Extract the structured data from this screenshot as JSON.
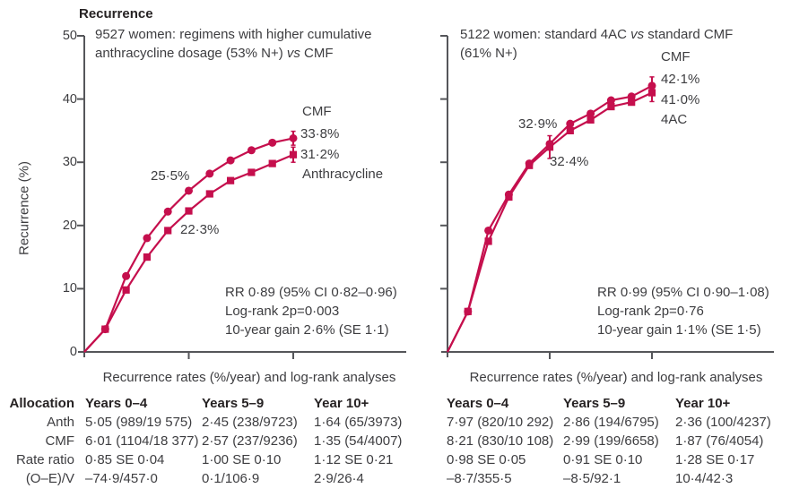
{
  "title": "Recurrence",
  "colors": {
    "series": "#c50f4d",
    "axis": "#55565a",
    "text": "#3d3d40",
    "strong": "#262223"
  },
  "axes": {
    "y_label": "Recurrence (%)",
    "y_tick_labels": [
      "0",
      "10",
      "20",
      "30",
      "40",
      "50"
    ],
    "y_max": 50,
    "x_tick_years": [
      5,
      10
    ]
  },
  "chart_data": [
    {
      "type": "line",
      "panel": "left",
      "header": {
        "line1": "9527 women: regimens with higher cumulative",
        "line2_pre": "anthracycline dosage (53% N+) ",
        "vs": "vs",
        "line2_post": " CMF"
      },
      "x_years": [
        0,
        1,
        2,
        3,
        4,
        5,
        6,
        7,
        8,
        9,
        10
      ],
      "xlabel": "",
      "ylabel": "Recurrence (%)",
      "ylim": [
        0,
        50
      ],
      "series": [
        {
          "name": "CMF",
          "marker": "circle",
          "values": [
            0,
            3.6,
            12.0,
            18.0,
            22.2,
            25.5,
            28.2,
            30.3,
            31.9,
            33.1,
            33.8
          ],
          "error_bars": [
            {
              "year": 10,
              "half": 1.1
            }
          ],
          "five_year_label": "25·5%",
          "end_label": "33·8%"
        },
        {
          "name": "Anthracycline",
          "marker": "square",
          "values": [
            0,
            3.6,
            9.8,
            15.0,
            19.2,
            22.3,
            25.0,
            27.1,
            28.4,
            29.8,
            31.2
          ],
          "error_bars": [
            {
              "year": 10,
              "half": 1.2
            }
          ],
          "five_year_label": "22·3%",
          "end_label": "31·2%"
        }
      ],
      "stats": [
        "RR 0·89 (95% CI 0·82–0·96)",
        "Log-rank 2p=0·003",
        "10-year gain 2·6% (SE 1·1)"
      ]
    },
    {
      "type": "line",
      "panel": "right",
      "header": {
        "line1_pre": "5122 women: standard 4AC ",
        "vs": "vs",
        "line1_post": " standard CMF",
        "line2": "(61% N+)"
      },
      "x_years": [
        0,
        1,
        2,
        3,
        4,
        5,
        6,
        7,
        8,
        9,
        10
      ],
      "xlabel": "",
      "ylabel": "Recurrence (%)",
      "ylim": [
        0,
        50
      ],
      "series": [
        {
          "name": "CMF",
          "marker": "circle",
          "values": [
            0,
            6.4,
            19.2,
            24.9,
            29.8,
            32.9,
            36.1,
            37.7,
            39.8,
            40.4,
            42.1
          ],
          "error_bars": [
            {
              "year": 10,
              "half": 1.4
            }
          ],
          "five_year_label": "32·9%",
          "end_label": "42·1%"
        },
        {
          "name": "4AC",
          "marker": "square",
          "values": [
            0,
            6.4,
            17.5,
            24.5,
            29.5,
            32.4,
            35.0,
            36.7,
            38.8,
            39.5,
            41.0
          ],
          "error_bars": [
            {
              "year": 5,
              "half": 1.8
            },
            {
              "year": 10,
              "half": 1.4
            }
          ],
          "five_year_label": "32·4%",
          "end_label": "41·0%"
        }
      ],
      "stats": [
        "RR 0·99 (95% CI 0·90–1·08)",
        "Log-rank 2p=0·76",
        "10-year gain 1·1% (SE 1·5)"
      ]
    }
  ],
  "tables": {
    "left": {
      "title": "Recurrence rates (%/year) and log-rank analyses",
      "headers": [
        "Allocation",
        "Years 0–4",
        "Years 5–9",
        "Year 10+"
      ],
      "rows": [
        [
          "Anth",
          "5·05 (989/19 575)",
          "2·45 (238/9723)",
          "1·64 (65/3973)"
        ],
        [
          "CMF",
          "6·01 (1104/18 377)",
          "2·57 (237/9236)",
          "1·35 (54/4007)"
        ],
        [
          "Rate ratio",
          "0·85 SE 0·04",
          "1·00 SE 0·10",
          "1·12 SE 0·21"
        ],
        [
          "(O–E)/V",
          "–74·9/457·0",
          "0·1/106·9",
          "2·9/26·4"
        ]
      ]
    },
    "right": {
      "title": "Recurrence rates (%/year) and log-rank analyses",
      "headers": [
        "Years 0–4",
        "Years 5–9",
        "Year 10+"
      ],
      "rows": [
        [
          "7·97 (820/10 292)",
          "2·86 (194/6795)",
          "2·36 (100/4237)"
        ],
        [
          "8·21 (830/10 108)",
          "2·99 (199/6658)",
          "1·87 (76/4054)"
        ],
        [
          "0·98 SE 0·05",
          "0·91 SE 0·10",
          "1·28 SE 0·17"
        ],
        [
          "–8·7/355·5",
          "–8·5/92·1",
          "10·4/42·3"
        ]
      ]
    }
  }
}
